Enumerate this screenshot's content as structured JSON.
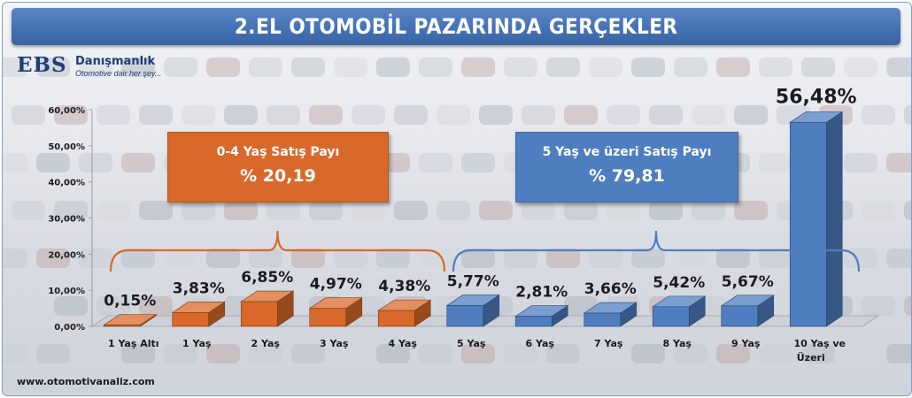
{
  "header": {
    "title": "2.EL OTOMOBİL PAZARINDA GERÇEKLER"
  },
  "logo": {
    "mark": "EBS",
    "name": "Danışmanlık",
    "tagline": "Otomotive dair her şey..."
  },
  "footer": {
    "url": "www.otomotivanaliz.com"
  },
  "groups": {
    "young": {
      "label": "0-4 Yaş Satış Payı",
      "value": "% 20,19",
      "color": "#d9692a"
    },
    "old": {
      "label": "5 Yaş ve üzeri Satış Payı",
      "value": "% 79,81",
      "color": "#4f7ec0"
    }
  },
  "chart_data": {
    "type": "bar",
    "title": "2.EL OTOMOBİL PAZARINDA GERÇEKLER",
    "categories": [
      "1 Yaş Altı",
      "1 Yaş",
      "2 Yaş",
      "3 Yaş",
      "4 Yaş",
      "5 Yaş",
      "6 Yaş",
      "7 Yaş",
      "8 Yaş",
      "9 Yaş",
      "10 Yaş ve Üzeri"
    ],
    "values": [
      0.15,
      3.83,
      6.85,
      4.97,
      4.38,
      5.77,
      2.81,
      3.66,
      5.42,
      5.67,
      56.48
    ],
    "data_labels": [
      "0,15%",
      "3,83%",
      "6,85%",
      "4,97%",
      "4,38%",
      "5,77%",
      "2,81%",
      "3,66%",
      "5,42%",
      "5,67%",
      "56,48%"
    ],
    "bar_colors": [
      "#d9692a",
      "#d9692a",
      "#d9692a",
      "#d9692a",
      "#d9692a",
      "#4f7ec0",
      "#4f7ec0",
      "#4f7ec0",
      "#4f7ec0",
      "#4f7ec0",
      "#4f7ec0"
    ],
    "ylim": [
      0,
      60
    ],
    "yticks": [
      "0,00%",
      "10,00%",
      "20,00%",
      "30,00%",
      "40,00%",
      "50,00%",
      "60,00%"
    ],
    "grid": false,
    "legend": "none"
  }
}
